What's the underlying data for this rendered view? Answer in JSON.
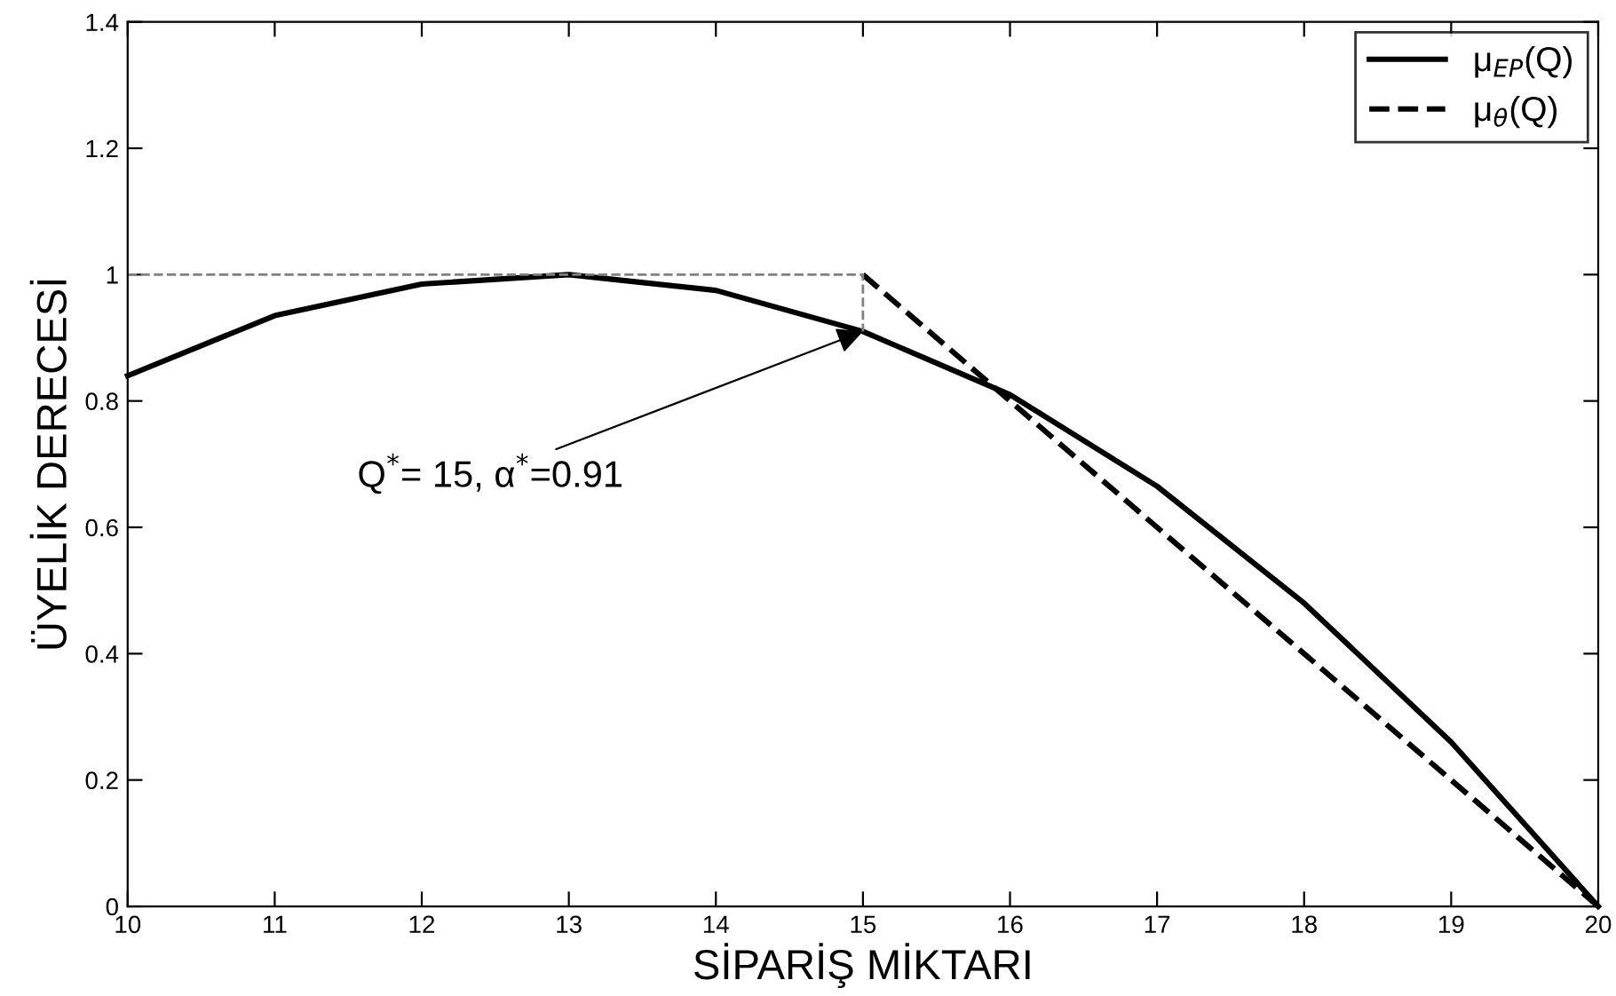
{
  "chart_data": {
    "type": "line",
    "xlabel": "SİPARİŞ MİKTARI",
    "ylabel": "ÜYELİK DERECESİ",
    "series": [
      {
        "name": "μ$_{EP}$(Q)",
        "color": "#000000",
        "line_style": "solid",
        "x": [
          10,
          11,
          12,
          13,
          14,
          15,
          16,
          17,
          18,
          19,
          20
        ],
        "values": [
          0.84,
          0.935,
          0.985,
          1.0,
          0.975,
          0.91,
          0.81,
          0.665,
          0.48,
          0.26,
          0
        ]
      },
      {
        "name": "μ$_{θ}$(Q)",
        "color": "#000000",
        "line_style": "dashed",
        "x": [
          15,
          16,
          17,
          18,
          19,
          20
        ],
        "values": [
          1,
          0.8,
          0.6,
          0.4,
          0.2,
          0
        ]
      },
      {
        "color": "#808080",
        "line_style": "dashed",
        "x": [
          10,
          15,
          15
        ],
        "values": [
          1,
          1,
          0.91
        ]
      }
    ],
    "annotations": [
      {
        "text": "Q$^{*}$= 15, α$^{*}$=0.91",
        "x": 15,
        "y": 0.91
      }
    ],
    "xlim": [
      10,
      20
    ],
    "xticks": [
      10,
      11,
      12,
      13,
      14,
      15,
      16,
      17,
      18,
      19,
      20
    ],
    "ylim": [
      0,
      1.4
    ],
    "yticks": [
      0,
      0.2,
      0.4,
      0.6,
      0.8,
      1,
      1.2,
      1.4
    ],
    "grid": false,
    "legend": "top right",
    "marker": "none"
  }
}
